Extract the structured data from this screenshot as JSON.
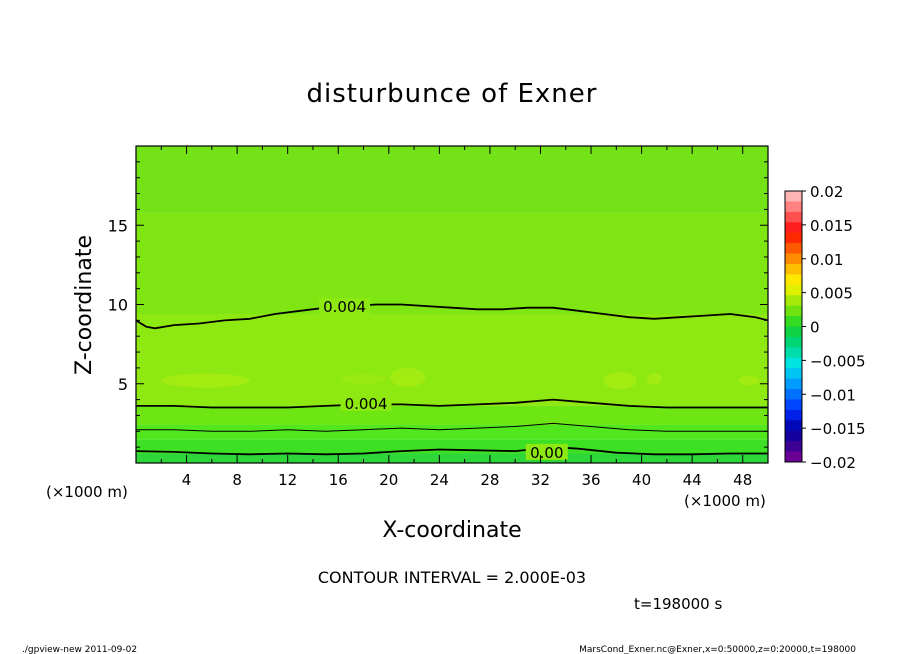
{
  "chart_data": {
    "type": "heatmap",
    "title": "disturbunce of Exner",
    "xlabel": "X-coordinate",
    "ylabel": "Z-coordinate",
    "x_unit": "(×1000 m)",
    "y_unit": "(×1000 m)",
    "xlim": [
      0,
      50
    ],
    "ylim": [
      0,
      20
    ],
    "x_ticks": [
      4,
      8,
      12,
      16,
      20,
      24,
      28,
      32,
      36,
      40,
      44,
      48
    ],
    "y_ticks": [
      5,
      10,
      15
    ],
    "contour_interval_text": "CONTOUR INTERVAL = 2.000E-03",
    "contour_labels": [
      {
        "text": "0.004",
        "x": 16.5,
        "z": 9.9
      },
      {
        "text": "0.004",
        "x": 18.2,
        "z": 3.8
      },
      {
        "text": "0.00",
        "x": 32.5,
        "z": 0.7
      }
    ],
    "contours": [
      {
        "level": 0.004,
        "points": [
          [
            0,
            9.0
          ],
          [
            0.8,
            8.6
          ],
          [
            1.5,
            8.5
          ],
          [
            3,
            8.7
          ],
          [
            5,
            8.8
          ],
          [
            7,
            9.0
          ],
          [
            9,
            9.1
          ],
          [
            11,
            9.4
          ],
          [
            13,
            9.6
          ],
          [
            15,
            9.8
          ],
          [
            17,
            9.9
          ],
          [
            19,
            10.0
          ],
          [
            21,
            10.0
          ],
          [
            23,
            9.9
          ],
          [
            25,
            9.8
          ],
          [
            27,
            9.7
          ],
          [
            29,
            9.7
          ],
          [
            31,
            9.8
          ],
          [
            33,
            9.8
          ],
          [
            35,
            9.6
          ],
          [
            37,
            9.4
          ],
          [
            39,
            9.2
          ],
          [
            41,
            9.1
          ],
          [
            43,
            9.2
          ],
          [
            45,
            9.3
          ],
          [
            47,
            9.4
          ],
          [
            49,
            9.2
          ],
          [
            50,
            9.0
          ]
        ]
      },
      {
        "level": 0.004,
        "points": [
          [
            0,
            3.6
          ],
          [
            3,
            3.6
          ],
          [
            6,
            3.5
          ],
          [
            9,
            3.5
          ],
          [
            12,
            3.5
          ],
          [
            15,
            3.6
          ],
          [
            18,
            3.7
          ],
          [
            21,
            3.7
          ],
          [
            24,
            3.6
          ],
          [
            27,
            3.7
          ],
          [
            30,
            3.8
          ],
          [
            33,
            4.0
          ],
          [
            36,
            3.8
          ],
          [
            39,
            3.6
          ],
          [
            42,
            3.5
          ],
          [
            45,
            3.5
          ],
          [
            48,
            3.5
          ],
          [
            50,
            3.5
          ]
        ]
      },
      {
        "level": 0.002,
        "points": [
          [
            0,
            2.1
          ],
          [
            3,
            2.1
          ],
          [
            6,
            2.0
          ],
          [
            9,
            2.0
          ],
          [
            12,
            2.1
          ],
          [
            15,
            2.0
          ],
          [
            18,
            2.1
          ],
          [
            21,
            2.2
          ],
          [
            24,
            2.1
          ],
          [
            27,
            2.2
          ],
          [
            30,
            2.3
          ],
          [
            33,
            2.5
          ],
          [
            36,
            2.3
          ],
          [
            39,
            2.1
          ],
          [
            42,
            2.0
          ],
          [
            45,
            2.0
          ],
          [
            48,
            2.0
          ],
          [
            50,
            2.0
          ]
        ]
      },
      {
        "level": 0.0,
        "points": [
          [
            0,
            0.75
          ],
          [
            3,
            0.7
          ],
          [
            6,
            0.6
          ],
          [
            9,
            0.55
          ],
          [
            12,
            0.6
          ],
          [
            15,
            0.55
          ],
          [
            18,
            0.6
          ],
          [
            21,
            0.75
          ],
          [
            24,
            0.85
          ],
          [
            27,
            0.8
          ],
          [
            30,
            0.75
          ],
          [
            33,
            1.0
          ],
          [
            35,
            0.9
          ],
          [
            38,
            0.65
          ],
          [
            41,
            0.55
          ],
          [
            44,
            0.55
          ],
          [
            47,
            0.6
          ],
          [
            50,
            0.6
          ]
        ]
      }
    ],
    "fill_bands": [
      {
        "zmin": 0.0,
        "zmax": 0.6,
        "color": "#2ed63a"
      },
      {
        "zmin": 0.6,
        "zmax": 1.5,
        "color": "#3ee024"
      },
      {
        "zmin": 1.5,
        "zmax": 2.4,
        "color": "#52e61c"
      },
      {
        "zmin": 2.4,
        "zmax": 3.6,
        "color": "#6de614"
      },
      {
        "zmin": 3.6,
        "zmax": 9.4,
        "color": "#8ee812"
      },
      {
        "zmin": 9.4,
        "zmax": 15.8,
        "color": "#7fe614"
      },
      {
        "zmin": 15.8,
        "zmax": 20.0,
        "color": "#73e217"
      }
    ],
    "highlights": [
      {
        "x": 5.5,
        "z": 5.2,
        "rx": 3.5,
        "rz": 0.45,
        "color": "#a2ec12"
      },
      {
        "x": 21.5,
        "z": 5.4,
        "rx": 1.4,
        "rz": 0.6,
        "color": "#a2ec12"
      },
      {
        "x": 38.3,
        "z": 5.2,
        "rx": 1.3,
        "rz": 0.55,
        "color": "#a2ec12"
      },
      {
        "x": 41.0,
        "z": 5.3,
        "rx": 0.6,
        "rz": 0.35,
        "color": "#a2ec12"
      },
      {
        "x": 48.5,
        "z": 5.2,
        "rx": 0.8,
        "rz": 0.3,
        "color": "#a2ec12"
      },
      {
        "x": 18.0,
        "z": 5.3,
        "rx": 1.8,
        "rz": 0.3,
        "color": "#98ea12"
      }
    ],
    "colorbar": {
      "labels": [
        "0.02",
        "0.015",
        "0.01",
        "0.005",
        "0",
        "−0.005",
        "−0.01",
        "−0.015",
        "−0.02"
      ],
      "colors": [
        "#ffb4b4",
        "#ff8282",
        "#ff5050",
        "#ff1e1e",
        "#ff2a00",
        "#ff5a00",
        "#ff8c00",
        "#ffbe00",
        "#ffe800",
        "#e0f000",
        "#a6ea0a",
        "#70e212",
        "#36dc24",
        "#10d242",
        "#00d676",
        "#00dcaa",
        "#00e4e0",
        "#00c4f4",
        "#009cff",
        "#0070ff",
        "#0046ff",
        "#0020e8",
        "#0008b8",
        "#14009c",
        "#3c0094",
        "#6a0096"
      ]
    },
    "time_label": "t=198000 s"
  },
  "footer": {
    "left": "./gpview-new  2011-09-02",
    "right": "MarsCond_Exner.nc@Exner,x=0:50000,z=0:20000,t=198000"
  }
}
